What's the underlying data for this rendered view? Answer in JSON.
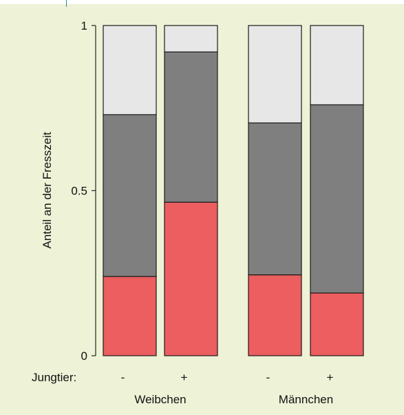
{
  "chart_data": {
    "type": "bar",
    "stacked": true,
    "normalized": true,
    "ylabel": "Anteil an der Fresszeit",
    "yticks": [
      "0",
      "0.5",
      "1"
    ],
    "ylim": [
      0,
      1
    ],
    "row_label": "Jungtier:",
    "groups": [
      "Weibchen",
      "Männchen"
    ],
    "categories": [
      "-",
      "+",
      "-",
      "+"
    ],
    "group_of_category": [
      0,
      0,
      1,
      1
    ],
    "series": [
      {
        "values": [
          0.24,
          0.465,
          0.245,
          0.19
        ]
      },
      {
        "values": [
          0.49,
          0.455,
          0.46,
          0.57
        ]
      },
      {
        "values": [
          0.27,
          0.08,
          0.295,
          0.24
        ]
      }
    ],
    "colors": [
      "#ec5e5f",
      "#7f7f7f",
      "#e7e7e7"
    ],
    "grid": false,
    "legend": "none"
  }
}
